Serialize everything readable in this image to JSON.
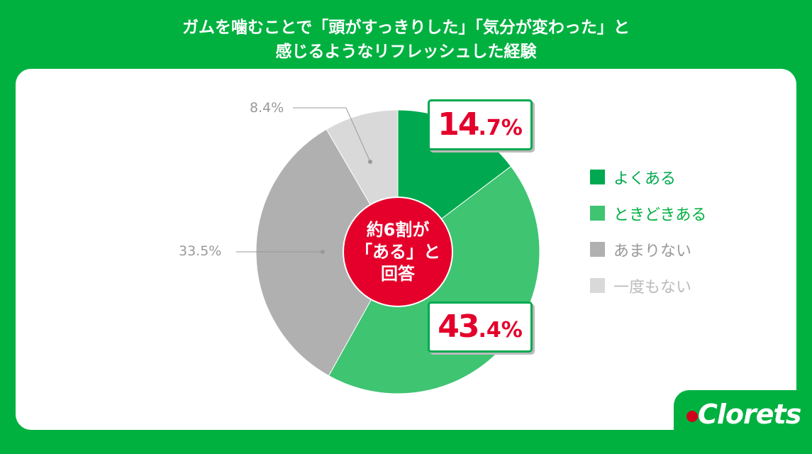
{
  "title": {
    "line1": "ガムを噛むことで「頭がすっきりした」「気分が変わった」と",
    "line2": "感じるようなリフレッシュした経験"
  },
  "chart_data": {
    "type": "pie",
    "start": "top",
    "direction": "clockwise",
    "categories": [
      "よくある",
      "ときどきある",
      "あまりない",
      "一度もない"
    ],
    "values": [
      14.7,
      43.4,
      33.5,
      8.4
    ],
    "colors": [
      "#00a94f",
      "#3fc472",
      "#b0b0b0",
      "#d9d9d9"
    ],
    "labels": [
      {
        "int": "14",
        "dec": ".7%"
      },
      {
        "int": "43",
        "dec": ".4%"
      },
      {
        "text": "33.5%"
      },
      {
        "text": "8.4%"
      }
    ],
    "legend": "right",
    "center_label": {
      "line1": "約6割が",
      "line2": "「ある」と",
      "line3": "回答",
      "color": "#e4002b"
    }
  },
  "legend_text_colors": [
    "#00a94f",
    "#00b140",
    "#999999",
    "#bbbbbb"
  ],
  "brand": {
    "logo": "Clorets",
    "color": "#00b140"
  }
}
